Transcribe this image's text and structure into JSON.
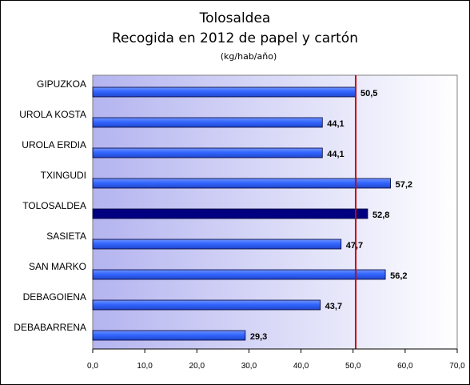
{
  "chart_data": {
    "type": "bar",
    "orientation": "horizontal",
    "title": "Tolosaldea",
    "subtitle": "Recogida en 2012 de papel y cartón",
    "unit": "(kg/hab/aňo)",
    "categories": [
      "GIPUZKOA",
      "UROLA KOSTA",
      "UROLA ERDIA",
      "TXINGUDI",
      "TOLOSALDEA",
      "SASIETA",
      "SAN MARKO",
      "DEBAGOIENA",
      "DEBABARRENA"
    ],
    "values": [
      50.5,
      44.1,
      44.1,
      57.2,
      52.8,
      47.7,
      56.2,
      43.7,
      29.3
    ],
    "value_labels": [
      "50,5",
      "44,1",
      "44,1",
      "57,2",
      "52,8",
      "47,7",
      "56,2",
      "43,7",
      "29,3"
    ],
    "highlight_category": "TOLOSALDEA",
    "reference_line": 50.5,
    "xlim": [
      0,
      70
    ],
    "xticks": [
      0,
      10,
      20,
      30,
      40,
      50,
      60,
      70
    ],
    "xtick_labels": [
      "0,0",
      "10,0",
      "20,0",
      "30,0",
      "40,0",
      "50,0",
      "60,0",
      "70,0"
    ],
    "grid": false,
    "colors": {
      "bar": "#3366ff",
      "bar_highlight": "#000080",
      "reference_line": "#cc0000",
      "plot_gradient_start": "#b4b4f0",
      "plot_gradient_end": "#ffffff"
    }
  }
}
